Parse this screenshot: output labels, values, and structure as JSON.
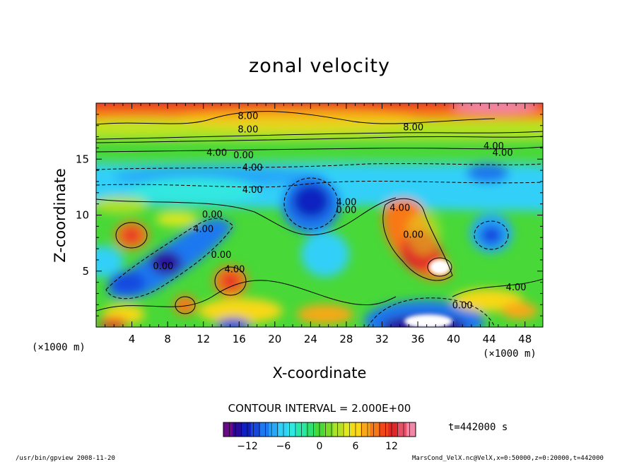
{
  "chart_data": {
    "type": "heatmap",
    "title": "zonal velocity",
    "xlabel": "X-coordinate",
    "ylabel": "Z-coordinate",
    "x_unit": "(×1000 m)",
    "y_unit": "(×1000 m)",
    "xlim": [
      0,
      50
    ],
    "ylim": [
      0,
      20
    ],
    "x_ticks": [
      "4",
      "8",
      "12",
      "16",
      "20",
      "24",
      "28",
      "32",
      "36",
      "40",
      "44",
      "48"
    ],
    "y_ticks": [
      "5",
      "10",
      "15"
    ],
    "contour_interval": "CONTOUR INTERVAL = 2.000E+00",
    "contour_labels": [
      {
        "text": "8.00",
        "x": 17,
        "z": 18.9
      },
      {
        "text": "8.00",
        "x": 17,
        "z": 17.7
      },
      {
        "text": "8.00",
        "x": 35.5,
        "z": 17.9
      },
      {
        "text": "4.00",
        "x": 13.5,
        "z": 15.6
      },
      {
        "text": "0.00",
        "x": 16.5,
        "z": 15.4
      },
      {
        "text": "4.00",
        "x": 17.5,
        "z": 14.3
      },
      {
        "text": "4.00",
        "x": 44.5,
        "z": 16.2
      },
      {
        "text": "4.00",
        "x": 45.5,
        "z": 15.6
      },
      {
        "text": "4.00",
        "x": 17.5,
        "z": 12.3
      },
      {
        "text": "0.00",
        "x": 13,
        "z": 10.1
      },
      {
        "text": "4.00",
        "x": 12,
        "z": 8.8
      },
      {
        "text": "0.00",
        "x": 28,
        "z": 10.5
      },
      {
        "text": "4.00",
        "x": 28,
        "z": 11.2
      },
      {
        "text": "4.00",
        "x": 34,
        "z": 10.7
      },
      {
        "text": "0.00",
        "x": 35.5,
        "z": 8.3
      },
      {
        "text": "0.00",
        "x": 14,
        "z": 6.5
      },
      {
        "text": "0.00",
        "x": 7.5,
        "z": 5.5
      },
      {
        "text": "4.00",
        "x": 15.5,
        "z": 5.2
      },
      {
        "text": "4.00",
        "x": 47,
        "z": 3.6
      },
      {
        "text": "0.00",
        "x": 41,
        "z": 2.0
      }
    ],
    "colorbar": {
      "min": -16,
      "max": 16,
      "ticks": [
        "−12",
        "−6",
        "0",
        "6",
        "12"
      ],
      "tick_values": [
        -12,
        -6,
        0,
        6,
        12
      ],
      "colors": [
        "#6a0a8a",
        "#2a0a9a",
        "#1020c0",
        "#1848e0",
        "#1e78f0",
        "#28a8f8",
        "#30d0f8",
        "#30e8e0",
        "#28e8a8",
        "#30e070",
        "#48d838",
        "#78dc28",
        "#b0e028",
        "#e0e820",
        "#f8d818",
        "#f8a818",
        "#f87818",
        "#f04818",
        "#e02828",
        "#e85068",
        "#f088a8"
      ]
    },
    "features": [
      {
        "x": 4,
        "z": 8.2,
        "value": 9
      },
      {
        "x": 7.5,
        "z": 5.5,
        "value": -14
      },
      {
        "x": 4,
        "z": 4.2,
        "value": -11
      },
      {
        "x": 15.5,
        "z": 4.0,
        "value": 11
      },
      {
        "x": 10,
        "z": 2.0,
        "value": 10
      },
      {
        "x": 23,
        "z": 11,
        "value": -12
      },
      {
        "x": 36.5,
        "z": 7.5,
        "value": 12
      },
      {
        "x": 38.5,
        "z": 5.5,
        "value": 16
      },
      {
        "x": 36,
        "z": 0.5,
        "value": -16
      },
      {
        "x": 43.5,
        "z": 8.2,
        "value": -9
      },
      {
        "x": 45,
        "z": 2.5,
        "value": 9
      },
      {
        "x": 20,
        "z": 19.6,
        "value": 14
      }
    ]
  },
  "info": {
    "time": "t=442000 s",
    "program": "/usr/bin/gpview   2008-11-20",
    "dataset": "MarsCond_VelX.nc@VelX,x=0:50000,z=0:20000,t=442000"
  }
}
